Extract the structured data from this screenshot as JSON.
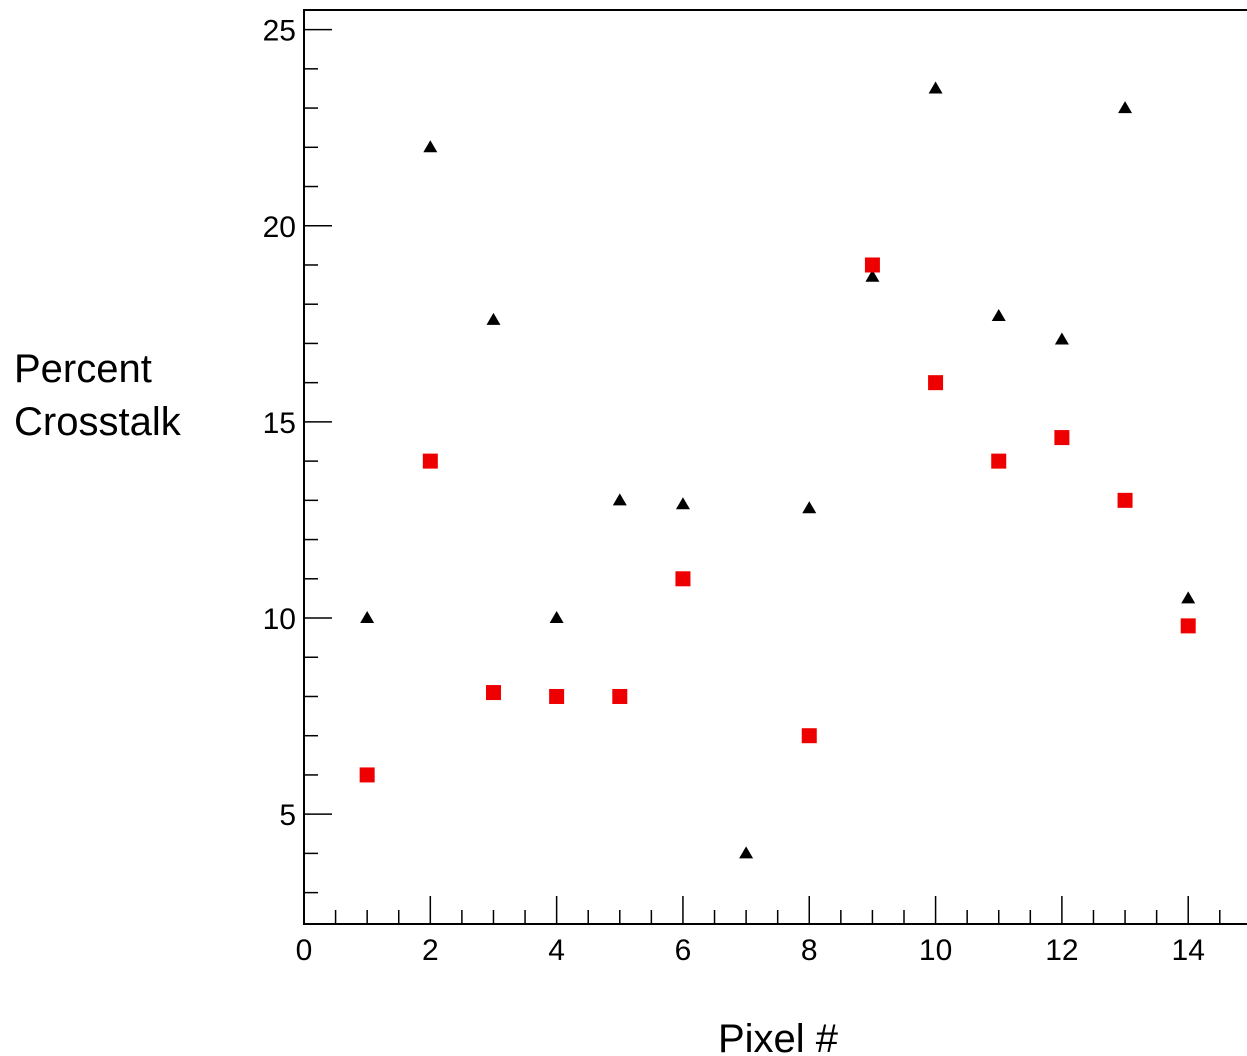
{
  "chart_data": {
    "type": "scatter",
    "title": "",
    "xlabel": "Pixel #",
    "ylabel_lines": [
      "Percent",
      "Crosstalk"
    ],
    "xlim": [
      0,
      15.2
    ],
    "ylim": [
      2.2,
      25.5
    ],
    "x_ticks": [
      0,
      2,
      4,
      6,
      8,
      10,
      12,
      14
    ],
    "x_tick_labels": [
      "0",
      "2",
      "4",
      "6",
      "8",
      "10",
      "12",
      "14"
    ],
    "x_minor_step": 0.5,
    "y_ticks": [
      5,
      10,
      15,
      20,
      25
    ],
    "y_tick_labels": [
      "5",
      "10",
      "15",
      "20",
      "25"
    ],
    "y_minor_step": 1,
    "grid": false,
    "legend": "none",
    "series": [
      {
        "marker": "triangle",
        "color": "#000000",
        "x": [
          1,
          2,
          3,
          4,
          5,
          6,
          7,
          8,
          9,
          10,
          11,
          12,
          13,
          14
        ],
        "y": [
          10.0,
          22.0,
          17.6,
          10.0,
          13.0,
          12.9,
          4.0,
          12.8,
          18.7,
          23.5,
          17.7,
          17.1,
          23.0,
          10.5
        ]
      },
      {
        "marker": "square",
        "color": "#ee0000",
        "x": [
          1,
          2,
          3,
          4,
          5,
          6,
          8,
          9,
          10,
          11,
          12,
          13,
          14
        ],
        "y": [
          6.0,
          14.0,
          8.1,
          8.0,
          8.0,
          11.0,
          7.0,
          19.0,
          16.0,
          14.0,
          14.6,
          13.0,
          9.8
        ]
      }
    ]
  }
}
